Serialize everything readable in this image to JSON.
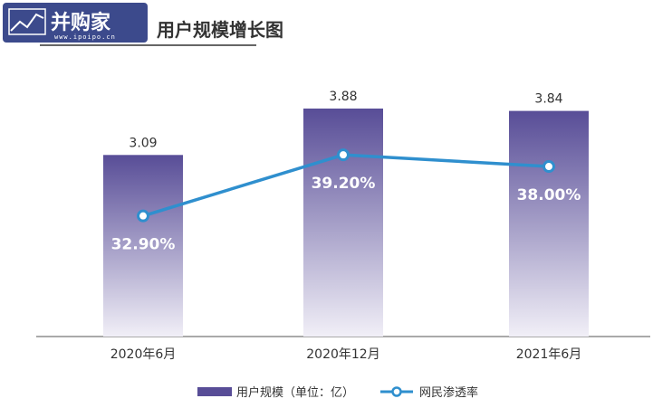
{
  "watermark": {
    "name": "并购家",
    "url": "www.ipoipo.cn"
  },
  "colors": {
    "bar_top": "#584d97",
    "bar_bottom": "#f1eff7",
    "line": "#2f8fce",
    "title_underline": "#333333"
  },
  "chart_data": {
    "type": "bar",
    "title": "用户规模增长图",
    "categories": [
      "2020年6月",
      "2020年12月",
      "2021年6月"
    ],
    "series": [
      {
        "name": "用户规模（单位：亿）",
        "type": "bar",
        "values": [
          3.09,
          3.88,
          3.84
        ],
        "labels": [
          "3.09",
          "3.88",
          "3.84"
        ]
      },
      {
        "name": "网民渗透率",
        "type": "line",
        "values": [
          32.9,
          39.2,
          38.0
        ],
        "labels": [
          "32.90%",
          "39.20%",
          "38.00%"
        ]
      }
    ],
    "legend_position": "bottom",
    "grid": false
  }
}
